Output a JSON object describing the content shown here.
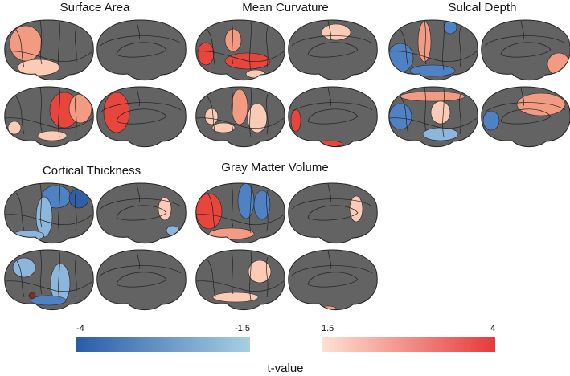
{
  "panels": [
    {
      "title": "Surface Area"
    },
    {
      "title": "Mean Curvature"
    },
    {
      "title": "Sulcal Depth"
    },
    {
      "title": "Cortical Thickness"
    },
    {
      "title": "Gray Matter Volume"
    }
  ],
  "colorbar": {
    "label": "t-value",
    "negative": {
      "min": "-4",
      "max": "-1.5"
    },
    "positive": {
      "min": "1.5",
      "max": "4"
    }
  }
}
